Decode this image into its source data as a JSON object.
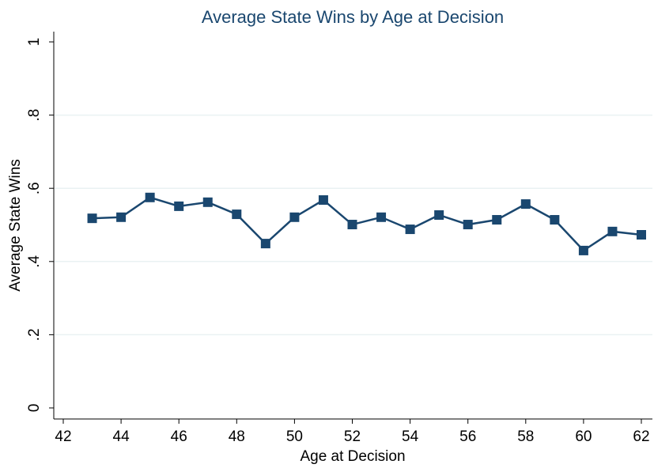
{
  "chart_data": {
    "type": "line",
    "title": "Average State Wins by Age at Decision",
    "x_label": "Age at Decision",
    "y_label": "Average State Wins",
    "x": [
      43,
      44,
      45,
      46,
      47,
      48,
      49,
      50,
      51,
      52,
      53,
      54,
      55,
      56,
      57,
      58,
      59,
      60,
      61,
      62
    ],
    "series": [
      {
        "name": "Average State Wins",
        "color": "#1a476f",
        "values": [
          0.518,
          0.521,
          0.575,
          0.551,
          0.562,
          0.529,
          0.449,
          0.521,
          0.568,
          0.501,
          0.521,
          0.488,
          0.527,
          0.501,
          0.514,
          0.557,
          0.514,
          0.43,
          0.482,
          0.473
        ]
      }
    ],
    "xlim": [
      42,
      62
    ],
    "xticks": [
      42,
      44,
      46,
      48,
      50,
      52,
      54,
      56,
      58,
      60,
      62
    ],
    "ylim": [
      0,
      1
    ],
    "yticks": [
      0,
      {
        "value": 0.2,
        "label": ".2"
      },
      {
        "value": 0.4,
        "label": ".4"
      },
      {
        "value": 0.6,
        "label": ".6"
      },
      {
        "value": 0.8,
        "label": ".8"
      },
      1
    ],
    "grid": true
  }
}
